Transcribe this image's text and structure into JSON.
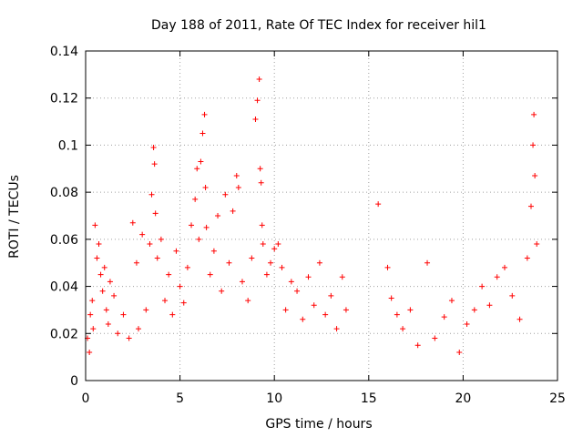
{
  "chart_data": {
    "type": "scatter",
    "title": "Day 188 of 2011, Rate Of TEC Index for receiver hil1",
    "xlabel": "GPS time / hours",
    "ylabel": "ROTI / TECUs",
    "xlim": [
      0,
      25
    ],
    "ylim": [
      0,
      0.14
    ],
    "xticks": [
      0,
      5,
      10,
      15,
      20,
      25
    ],
    "xtick_labels": [
      "0",
      "5",
      "10",
      "15",
      "20",
      "25"
    ],
    "yticks": [
      0,
      0.02,
      0.04,
      0.06,
      0.08,
      0.1,
      0.12,
      0.14
    ],
    "ytick_labels": [
      "0",
      "0.02",
      "0.04",
      "0.06",
      "0.08",
      "0.1",
      "0.12",
      "0.14"
    ],
    "grid": true,
    "marker": "+",
    "color": "#ff0000",
    "series": [
      {
        "name": "hil1",
        "points": [
          [
            0.1,
            0.018
          ],
          [
            0.2,
            0.012
          ],
          [
            0.25,
            0.028
          ],
          [
            0.35,
            0.034
          ],
          [
            0.4,
            0.022
          ],
          [
            0.5,
            0.066
          ],
          [
            0.6,
            0.052
          ],
          [
            0.7,
            0.058
          ],
          [
            0.8,
            0.045
          ],
          [
            0.9,
            0.038
          ],
          [
            1.0,
            0.048
          ],
          [
            1.1,
            0.03
          ],
          [
            1.2,
            0.024
          ],
          [
            1.3,
            0.042
          ],
          [
            1.5,
            0.036
          ],
          [
            1.7,
            0.02
          ],
          [
            2.0,
            0.028
          ],
          [
            2.3,
            0.018
          ],
          [
            2.5,
            0.067
          ],
          [
            2.7,
            0.05
          ],
          [
            2.8,
            0.022
          ],
          [
            3.0,
            0.062
          ],
          [
            3.2,
            0.03
          ],
          [
            3.4,
            0.058
          ],
          [
            3.5,
            0.079
          ],
          [
            3.6,
            0.099
          ],
          [
            3.65,
            0.092
          ],
          [
            3.7,
            0.071
          ],
          [
            3.8,
            0.052
          ],
          [
            4.0,
            0.06
          ],
          [
            4.2,
            0.034
          ],
          [
            4.4,
            0.045
          ],
          [
            4.6,
            0.028
          ],
          [
            4.8,
            0.055
          ],
          [
            5.0,
            0.04
          ],
          [
            5.2,
            0.033
          ],
          [
            5.4,
            0.048
          ],
          [
            5.6,
            0.066
          ],
          [
            5.8,
            0.077
          ],
          [
            5.9,
            0.09
          ],
          [
            6.0,
            0.06
          ],
          [
            6.1,
            0.093
          ],
          [
            6.2,
            0.105
          ],
          [
            6.3,
            0.113
          ],
          [
            6.35,
            0.082
          ],
          [
            6.4,
            0.065
          ],
          [
            6.6,
            0.045
          ],
          [
            6.8,
            0.055
          ],
          [
            7.0,
            0.07
          ],
          [
            7.2,
            0.038
          ],
          [
            7.4,
            0.079
          ],
          [
            7.6,
            0.05
          ],
          [
            7.8,
            0.072
          ],
          [
            8.0,
            0.087
          ],
          [
            8.1,
            0.082
          ],
          [
            8.3,
            0.042
          ],
          [
            8.6,
            0.034
          ],
          [
            8.8,
            0.052
          ],
          [
            9.0,
            0.111
          ],
          [
            9.1,
            0.119
          ],
          [
            9.2,
            0.128
          ],
          [
            9.25,
            0.09
          ],
          [
            9.3,
            0.084
          ],
          [
            9.35,
            0.066
          ],
          [
            9.4,
            0.058
          ],
          [
            9.6,
            0.045
          ],
          [
            9.8,
            0.05
          ],
          [
            10.0,
            0.056
          ],
          [
            10.2,
            0.058
          ],
          [
            10.4,
            0.048
          ],
          [
            10.6,
            0.03
          ],
          [
            10.9,
            0.042
          ],
          [
            11.2,
            0.038
          ],
          [
            11.5,
            0.026
          ],
          [
            11.8,
            0.044
          ],
          [
            12.1,
            0.032
          ],
          [
            12.4,
            0.05
          ],
          [
            12.7,
            0.028
          ],
          [
            13.0,
            0.036
          ],
          [
            13.3,
            0.022
          ],
          [
            13.6,
            0.044
          ],
          [
            13.8,
            0.03
          ],
          [
            15.5,
            0.075
          ],
          [
            16.0,
            0.048
          ],
          [
            16.2,
            0.035
          ],
          [
            16.5,
            0.028
          ],
          [
            16.8,
            0.022
          ],
          [
            17.2,
            0.03
          ],
          [
            17.6,
            0.015
          ],
          [
            18.1,
            0.05
          ],
          [
            18.5,
            0.018
          ],
          [
            19.0,
            0.027
          ],
          [
            19.4,
            0.034
          ],
          [
            19.8,
            0.012
          ],
          [
            20.2,
            0.024
          ],
          [
            20.6,
            0.03
          ],
          [
            21.0,
            0.04
          ],
          [
            21.4,
            0.032
          ],
          [
            21.8,
            0.044
          ],
          [
            22.2,
            0.048
          ],
          [
            22.6,
            0.036
          ],
          [
            23.0,
            0.026
          ],
          [
            23.4,
            0.052
          ],
          [
            23.6,
            0.074
          ],
          [
            23.7,
            0.1
          ],
          [
            23.75,
            0.113
          ],
          [
            23.8,
            0.087
          ],
          [
            23.9,
            0.058
          ]
        ]
      }
    ]
  }
}
